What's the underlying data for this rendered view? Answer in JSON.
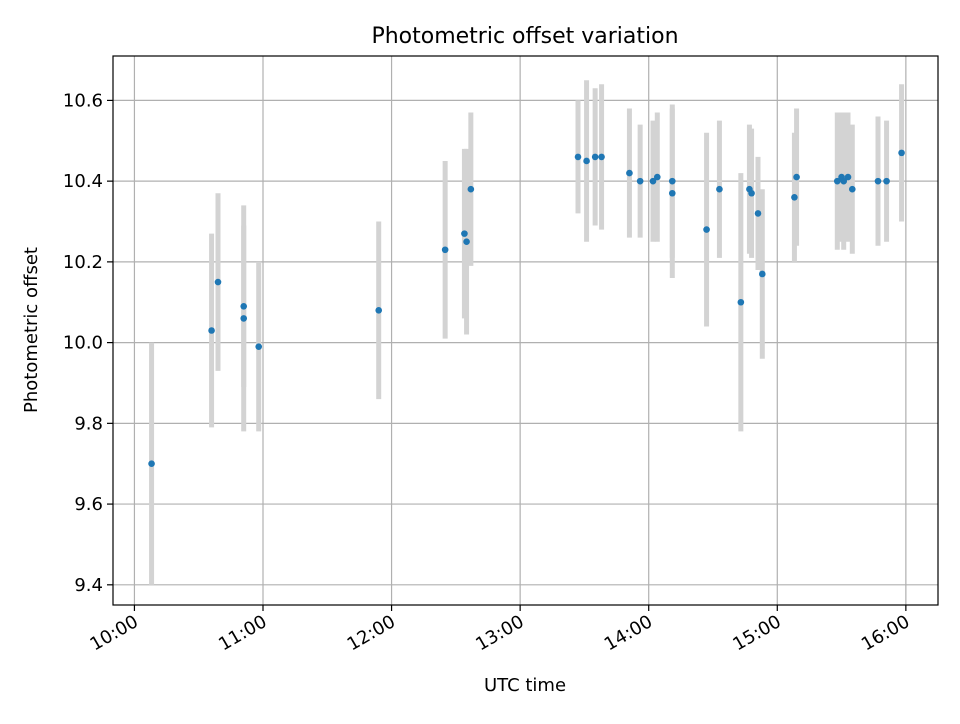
{
  "chart_data": {
    "type": "scatter",
    "title": "Photometric offset variation",
    "xlabel": "UTC time",
    "ylabel": "Photometric offset",
    "x_unit": "UTC time of day (HH:MM)",
    "xlim": [
      "09:50",
      "16:15"
    ],
    "ylim": [
      9.35,
      10.71
    ],
    "x_ticks": [
      "10:00",
      "11:00",
      "12:00",
      "13:00",
      "14:00",
      "15:00",
      "16:00"
    ],
    "y_ticks": [
      9.4,
      9.6,
      9.8,
      10.0,
      10.2,
      10.4,
      10.6
    ],
    "y_tick_labels": [
      "9.4",
      "9.6",
      "9.8",
      "10.0",
      "10.2",
      "10.4",
      "10.6"
    ],
    "grid": true,
    "marker_color": "#1f77b4",
    "errorbar_color": "#d3d3d3",
    "points": [
      {
        "x": "10:08",
        "y": 9.7,
        "err": 0.3
      },
      {
        "x": "10:36",
        "y": 10.03,
        "err": 0.24
      },
      {
        "x": "10:39",
        "y": 10.15,
        "err": 0.22
      },
      {
        "x": "10:51",
        "y": 10.09,
        "err": 0.2
      },
      {
        "x": "10:51",
        "y": 10.06,
        "err": 0.28
      },
      {
        "x": "10:58",
        "y": 9.99,
        "err": 0.21
      },
      {
        "x": "11:54",
        "y": 10.08,
        "err": 0.22
      },
      {
        "x": "12:25",
        "y": 10.23,
        "err": 0.22
      },
      {
        "x": "12:34",
        "y": 10.27,
        "err": 0.21
      },
      {
        "x": "12:35",
        "y": 10.25,
        "err": 0.23
      },
      {
        "x": "12:37",
        "y": 10.38,
        "err": 0.19
      },
      {
        "x": "13:27",
        "y": 10.46,
        "err": 0.14
      },
      {
        "x": "13:31",
        "y": 10.45,
        "err": 0.2
      },
      {
        "x": "13:35",
        "y": 10.46,
        "err": 0.17
      },
      {
        "x": "13:38",
        "y": 10.46,
        "err": 0.18
      },
      {
        "x": "13:51",
        "y": 10.42,
        "err": 0.16
      },
      {
        "x": "13:56",
        "y": 10.4,
        "err": 0.14
      },
      {
        "x": "14:02",
        "y": 10.4,
        "err": 0.15
      },
      {
        "x": "14:04",
        "y": 10.41,
        "err": 0.16
      },
      {
        "x": "14:11",
        "y": 10.4,
        "err": 0.19
      },
      {
        "x": "14:11",
        "y": 10.37,
        "err": 0.21
      },
      {
        "x": "14:27",
        "y": 10.28,
        "err": 0.24
      },
      {
        "x": "14:33",
        "y": 10.38,
        "err": 0.17
      },
      {
        "x": "14:43",
        "y": 10.1,
        "err": 0.32
      },
      {
        "x": "14:47",
        "y": 10.38,
        "err": 0.16
      },
      {
        "x": "14:48",
        "y": 10.37,
        "err": 0.16
      },
      {
        "x": "14:51",
        "y": 10.32,
        "err": 0.14
      },
      {
        "x": "14:53",
        "y": 10.17,
        "err": 0.21
      },
      {
        "x": "15:08",
        "y": 10.36,
        "err": 0.16
      },
      {
        "x": "15:09",
        "y": 10.41,
        "err": 0.17
      },
      {
        "x": "15:28",
        "y": 10.4,
        "err": 0.17
      },
      {
        "x": "15:30",
        "y": 10.41,
        "err": 0.16
      },
      {
        "x": "15:31",
        "y": 10.4,
        "err": 0.17
      },
      {
        "x": "15:33",
        "y": 10.41,
        "err": 0.16
      },
      {
        "x": "15:35",
        "y": 10.38,
        "err": 0.16
      },
      {
        "x": "15:47",
        "y": 10.4,
        "err": 0.16
      },
      {
        "x": "15:51",
        "y": 10.4,
        "err": 0.15
      },
      {
        "x": "15:58",
        "y": 10.47,
        "err": 0.17
      }
    ]
  }
}
